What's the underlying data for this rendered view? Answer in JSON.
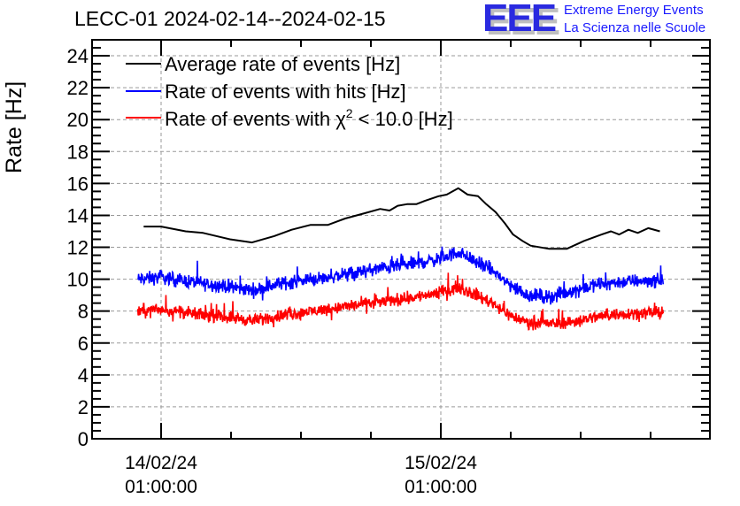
{
  "chart_data": {
    "type": "line",
    "title": "LECC-01 2024-02-14--2024-02-15",
    "xlabel": "",
    "ylabel": "Rate [Hz]",
    "ylim": [
      0,
      25
    ],
    "y_ticks": [
      0,
      2,
      4,
      6,
      8,
      10,
      12,
      14,
      16,
      18,
      20,
      22,
      24
    ],
    "x_unit": "hours since 14/02/24 01:00:00",
    "xlim": [
      -6,
      47
    ],
    "x_major_ticks": [
      {
        "x": 0,
        "label_line1": "14/02/24",
        "label_line2": "01:00:00"
      },
      {
        "x": 24,
        "label_line1": "15/02/24",
        "label_line2": "01:00:00"
      }
    ],
    "x_minor_tick_step_hours": 6,
    "grid": true,
    "legend_position": "top-left",
    "series": [
      {
        "name": "Average rate of events [Hz]",
        "color": "#000000",
        "style": "smooth",
        "points": [
          [
            -1.5,
            13.3
          ],
          [
            0.0,
            13.3
          ],
          [
            2.1,
            13.0
          ],
          [
            3.6,
            12.9
          ],
          [
            5.9,
            12.5
          ],
          [
            7.8,
            12.3
          ],
          [
            9.7,
            12.7
          ],
          [
            11.2,
            13.1
          ],
          [
            12.8,
            13.4
          ],
          [
            14.3,
            13.4
          ],
          [
            15.8,
            13.8
          ],
          [
            17.3,
            14.1
          ],
          [
            18.8,
            14.4
          ],
          [
            19.6,
            14.3
          ],
          [
            20.3,
            14.6
          ],
          [
            21.1,
            14.7
          ],
          [
            21.9,
            14.7
          ],
          [
            22.6,
            14.9
          ],
          [
            23.8,
            15.2
          ],
          [
            24.5,
            15.3
          ],
          [
            25.5,
            15.7
          ],
          [
            26.3,
            15.3
          ],
          [
            27.2,
            15.2
          ],
          [
            27.9,
            14.7
          ],
          [
            28.7,
            14.2
          ],
          [
            29.5,
            13.5
          ],
          [
            30.2,
            12.8
          ],
          [
            31.0,
            12.4
          ],
          [
            31.7,
            12.1
          ],
          [
            33.3,
            11.9
          ],
          [
            34.8,
            11.9
          ],
          [
            36.3,
            12.4
          ],
          [
            37.8,
            12.8
          ],
          [
            38.6,
            13.0
          ],
          [
            39.3,
            12.8
          ],
          [
            40.1,
            13.1
          ],
          [
            40.9,
            12.9
          ],
          [
            41.8,
            13.2
          ],
          [
            42.8,
            13.0
          ]
        ]
      },
      {
        "name": "Rate of events with hits [Hz]",
        "color": "#0000ff",
        "style": "noisy",
        "noise_amplitude": 0.9,
        "trend": [
          [
            -2.0,
            10.0
          ],
          [
            0.0,
            10.1
          ],
          [
            3.0,
            9.8
          ],
          [
            6.0,
            9.5
          ],
          [
            8.0,
            9.3
          ],
          [
            10.0,
            9.7
          ],
          [
            13.0,
            10.0
          ],
          [
            16.0,
            10.3
          ],
          [
            19.0,
            10.7
          ],
          [
            22.0,
            11.0
          ],
          [
            24.0,
            11.3
          ],
          [
            25.5,
            11.7
          ],
          [
            27.0,
            11.1
          ],
          [
            28.5,
            10.5
          ],
          [
            30.0,
            9.6
          ],
          [
            31.5,
            9.0
          ],
          [
            33.5,
            8.9
          ],
          [
            35.0,
            9.2
          ],
          [
            37.0,
            9.6
          ],
          [
            39.0,
            9.8
          ],
          [
            41.0,
            9.9
          ],
          [
            43.1,
            9.9
          ]
        ]
      },
      {
        "name": "Rate of events with χ² < 10.0 [Hz]",
        "color": "#ff0000",
        "style": "noisy",
        "noise_amplitude": 0.8,
        "trend": [
          [
            -2.0,
            8.0
          ],
          [
            0.0,
            8.1
          ],
          [
            3.0,
            7.8
          ],
          [
            6.0,
            7.6
          ],
          [
            8.0,
            7.4
          ],
          [
            10.0,
            7.7
          ],
          [
            13.0,
            8.0
          ],
          [
            16.0,
            8.3
          ],
          [
            19.0,
            8.6
          ],
          [
            22.0,
            8.9
          ],
          [
            24.0,
            9.2
          ],
          [
            25.5,
            9.5
          ],
          [
            27.0,
            9.0
          ],
          [
            28.5,
            8.5
          ],
          [
            30.0,
            7.7
          ],
          [
            31.5,
            7.3
          ],
          [
            33.5,
            7.2
          ],
          [
            35.0,
            7.3
          ],
          [
            37.0,
            7.6
          ],
          [
            39.0,
            7.8
          ],
          [
            41.0,
            7.9
          ],
          [
            43.1,
            7.9
          ]
        ]
      }
    ]
  },
  "header": {
    "title": "LECC-01 2024-02-14--2024-02-15",
    "logo_text": "EEE",
    "logo_line1": "Extreme Energy Events",
    "logo_line2": "La Scienza nelle Scuole"
  },
  "legend": {
    "items": [
      {
        "label": "Average rate of events [Hz]",
        "color": "#000000"
      },
      {
        "label": "Rate of events with hits [Hz]",
        "color": "#0000ff"
      },
      {
        "label_prefix": "Rate of events with χ",
        "label_sup": "2",
        "label_suffix": " < 10.0 [Hz]",
        "color": "#ff0000"
      }
    ]
  }
}
